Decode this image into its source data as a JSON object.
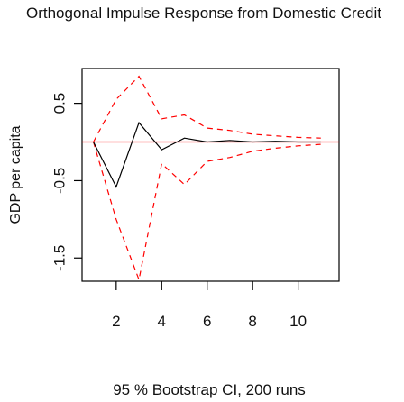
{
  "chart_data": {
    "type": "line",
    "title": "Orthogonal Impulse Response from Domestic Credit",
    "ylabel": "GDP per capita",
    "xlabel": "",
    "note": "95 % Bootstrap CI,  200 runs",
    "x": [
      1,
      2,
      3,
      4,
      5,
      6,
      7,
      8,
      9,
      10,
      11
    ],
    "xlim": [
      0.5,
      11.8
    ],
    "ylim": [
      -1.8,
      0.95
    ],
    "x_ticks": [
      2,
      4,
      6,
      8,
      10
    ],
    "y_ticks": [
      -1.5,
      -0.5,
      0.5
    ],
    "zero_line": 0,
    "series": [
      {
        "role": "irf",
        "color": "#000000",
        "values": [
          0.0,
          -0.58,
          0.25,
          -0.1,
          0.05,
          0.0,
          0.02,
          0.0,
          0.01,
          0.0,
          0.0
        ]
      },
      {
        "role": "upper",
        "color": "#ff0000",
        "values": [
          0.0,
          0.55,
          0.85,
          0.3,
          0.35,
          0.18,
          0.15,
          0.1,
          0.08,
          0.06,
          0.05
        ]
      },
      {
        "role": "lower",
        "color": "#ff0000",
        "values": [
          0.0,
          -1.0,
          -1.78,
          -0.28,
          -0.55,
          -0.25,
          -0.2,
          -0.12,
          -0.08,
          -0.05,
          -0.03
        ]
      }
    ],
    "grid": false,
    "colors": {
      "zero_line": "#ff0000",
      "axes": "#000000"
    }
  }
}
